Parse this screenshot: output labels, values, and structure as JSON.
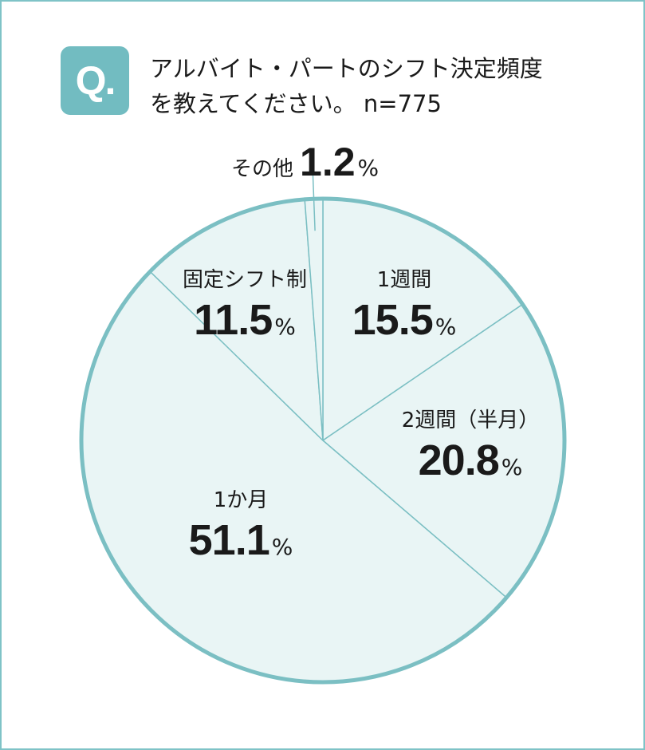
{
  "badge": "Q.",
  "question": {
    "line1": "アルバイト・パートのシフト決定頻度",
    "line2": "を教えてください。 n=775"
  },
  "colors": {
    "accent": "#72bcc1",
    "border": "#7fc3c7",
    "pie_fill": "#e9f5f5",
    "pie_stroke": "#7bbfc3"
  },
  "chart_data": {
    "type": "pie",
    "title": "アルバイト・パートのシフト決定頻度を教えてください。 n=775",
    "unit": "%",
    "slices": [
      {
        "label": "1週間",
        "value": 15.5,
        "display": "15.5"
      },
      {
        "label": "2週間（半月）",
        "value": 20.8,
        "display": "20.8"
      },
      {
        "label": "1か月",
        "value": 51.1,
        "display": "51.1"
      },
      {
        "label": "固定シフト制",
        "value": 11.5,
        "display": "11.5"
      },
      {
        "label": "その他",
        "value": 1.2,
        "display": "1.2"
      }
    ]
  }
}
